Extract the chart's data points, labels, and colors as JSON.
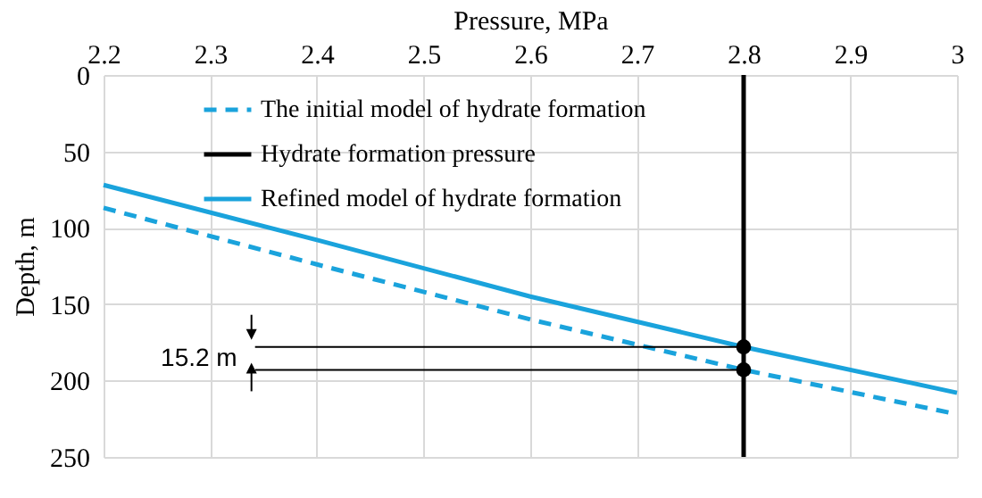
{
  "chart_data": {
    "type": "line",
    "xlabel": "Pressure, MPa",
    "ylabel": "Depth, m",
    "xlim": [
      2.2,
      3
    ],
    "xticks": [
      2.2,
      2.3,
      2.4,
      2.5,
      2.6,
      2.7,
      2.8,
      2.9,
      3
    ],
    "ylim": [
      250,
      0
    ],
    "yticks": [
      0,
      50,
      100,
      150,
      200,
      250
    ],
    "grid": true,
    "legend": "top left",
    "series": [
      {
        "name": "The initial model of hydrate formation",
        "color": "#1aa3dc",
        "line_style": "dashed",
        "x": [
          2.2,
          2.4,
          2.6,
          2.8,
          3
        ],
        "values": [
          87,
          124,
          160,
          193,
          222
        ]
      },
      {
        "name": "Hydrate formation pressure",
        "color": "#000000",
        "line_style": "solid",
        "x": [
          2.8,
          2.8
        ],
        "values": [
          0,
          250
        ]
      },
      {
        "name": "Refined model of hydrate formation",
        "color": "#1aa3dc",
        "line_style": "solid",
        "x": [
          2.2,
          2.4,
          2.6,
          2.8,
          3
        ],
        "values": [
          72,
          108,
          145,
          178,
          208
        ]
      },
      {
        "type": "scatter",
        "marker": "circle",
        "color": "#000000",
        "x": [
          2.8,
          2.8
        ],
        "values": [
          178,
          193
        ]
      },
      {
        "color": "#000000",
        "line_style": "solid",
        "x": [
          2.342,
          2.8
        ],
        "values": [
          178,
          178
        ]
      },
      {
        "color": "#000000",
        "line_style": "solid",
        "x": [
          2.342,
          2.8
        ],
        "values": [
          193,
          193
        ]
      }
    ],
    "annotations": [
      "15.2 m"
    ]
  }
}
